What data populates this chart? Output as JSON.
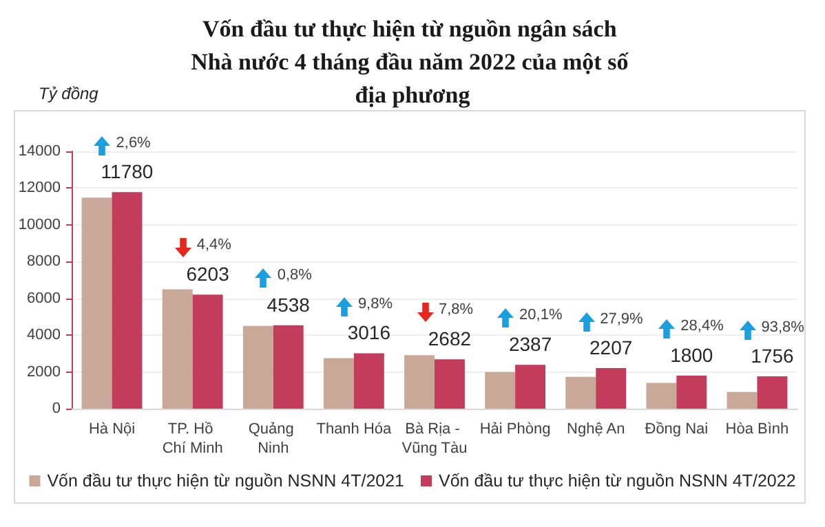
{
  "chart_data": {
    "type": "bar",
    "title": "Vốn đầu tư thực hiện từ nguồn ngân sách Nhà nước 4 tháng đầu năm 2022 của một số địa phương",
    "ylabel": "Tỷ đồng",
    "categories": [
      "Hà Nội",
      "TP. Hồ Chí Minh",
      "Quảng Ninh",
      "Thanh Hóa",
      "Bà Rịa - Vũng Tàu",
      "Hải Phòng",
      "Nghệ An",
      "Đồng Nai",
      "Hòa Bình"
    ],
    "series": [
      {
        "name": "Vốn đầu tư thực hiện từ nguồn NSNN 4T/2021",
        "color": "#c9a898",
        "values": [
          11480,
          6490,
          4500,
          2750,
          2910,
          1990,
          1730,
          1400,
          910
        ]
      },
      {
        "name": "Vốn đầu tư thực hiện từ nguồn NSNN 4T/2022",
        "color": "#c43c5c",
        "values": [
          11780,
          6203,
          4538,
          3016,
          2682,
          2387,
          2207,
          1800,
          1756
        ],
        "value_labels": [
          "11780",
          "6203",
          "4538",
          "3016",
          "2682",
          "2387",
          "2207",
          "1800",
          "1756"
        ]
      }
    ],
    "annotations": [
      "2,6%",
      "4,4%",
      "0,8%",
      "9,8%",
      "7,8%",
      "20,1%",
      "27,9%",
      "28,4%",
      "93,8%"
    ],
    "ylim": [
      0,
      14000
    ],
    "yticks": [
      0,
      2000,
      4000,
      6000,
      8000,
      10000,
      12000,
      14000
    ],
    "grid": "y",
    "legend": "bottom"
  }
}
